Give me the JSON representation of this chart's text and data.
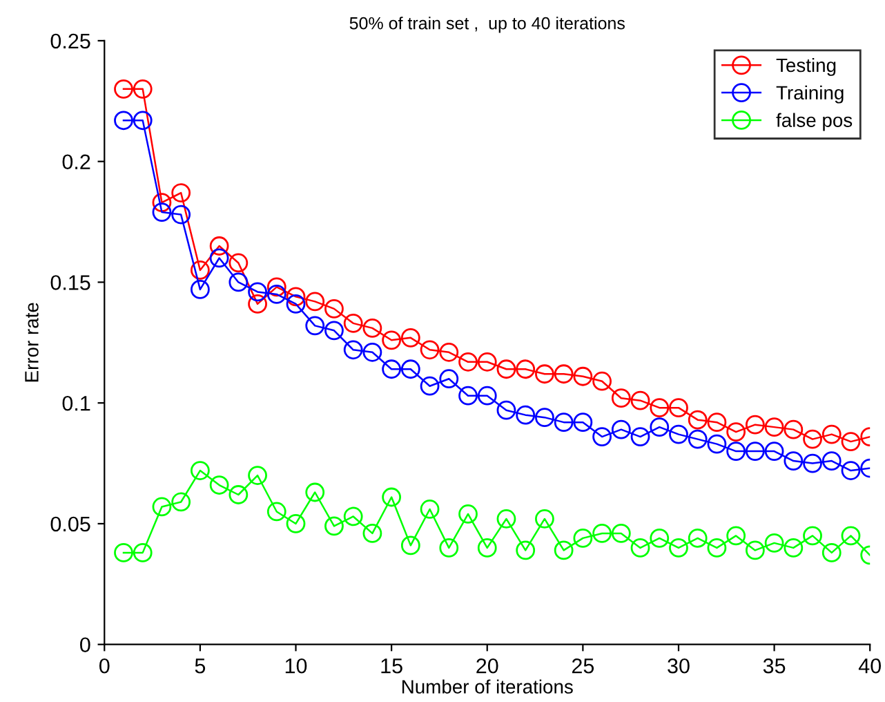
{
  "chart_data": {
    "type": "line",
    "title": "50% of train set ,  up to 40 iterations",
    "xlabel": "Number of iterations",
    "ylabel": "Error rate",
    "x": [
      1,
      2,
      3,
      4,
      5,
      6,
      7,
      8,
      9,
      10,
      11,
      12,
      13,
      14,
      15,
      16,
      17,
      18,
      19,
      20,
      21,
      22,
      23,
      24,
      25,
      26,
      27,
      28,
      29,
      30,
      31,
      32,
      33,
      34,
      35,
      36,
      37,
      38,
      39,
      40
    ],
    "series": [
      {
        "name": "Testing",
        "color": "#ff0000",
        "values": [
          0.23,
          0.23,
          0.183,
          0.187,
          0.155,
          0.165,
          0.158,
          0.141,
          0.148,
          0.144,
          0.142,
          0.139,
          0.133,
          0.131,
          0.126,
          0.127,
          0.122,
          0.121,
          0.117,
          0.117,
          0.114,
          0.114,
          0.112,
          0.112,
          0.111,
          0.109,
          0.102,
          0.101,
          0.098,
          0.098,
          0.093,
          0.092,
          0.088,
          0.091,
          0.09,
          0.089,
          0.085,
          0.087,
          0.084,
          0.086
        ]
      },
      {
        "name": "Training",
        "color": "#0000ff",
        "values": [
          0.217,
          0.217,
          0.179,
          0.178,
          0.147,
          0.16,
          0.15,
          0.146,
          0.145,
          0.141,
          0.132,
          0.13,
          0.122,
          0.121,
          0.114,
          0.114,
          0.107,
          0.11,
          0.103,
          0.103,
          0.097,
          0.095,
          0.094,
          0.092,
          0.092,
          0.086,
          0.089,
          0.086,
          0.09,
          0.087,
          0.085,
          0.083,
          0.08,
          0.08,
          0.08,
          0.076,
          0.075,
          0.076,
          0.072,
          0.073
        ]
      },
      {
        "name": "false pos",
        "color": "#00ff00",
        "values": [
          0.038,
          0.038,
          0.057,
          0.059,
          0.072,
          0.066,
          0.062,
          0.07,
          0.055,
          0.05,
          0.063,
          0.049,
          0.053,
          0.046,
          0.061,
          0.041,
          0.056,
          0.04,
          0.054,
          0.04,
          0.052,
          0.039,
          0.052,
          0.039,
          0.044,
          0.046,
          0.046,
          0.04,
          0.044,
          0.04,
          0.044,
          0.04,
          0.045,
          0.039,
          0.042,
          0.04,
          0.045,
          0.038,
          0.045,
          0.037
        ]
      }
    ],
    "xlim": [
      0,
      40
    ],
    "xticks": [
      0,
      5,
      10,
      15,
      20,
      25,
      30,
      35,
      40
    ],
    "ylim": [
      0,
      0.25
    ],
    "yticks": [
      0,
      0.05,
      0.1,
      0.15,
      0.2,
      0.25
    ],
    "legend": "top right",
    "marker": "circle",
    "line_style": "solid",
    "grid": false
  }
}
